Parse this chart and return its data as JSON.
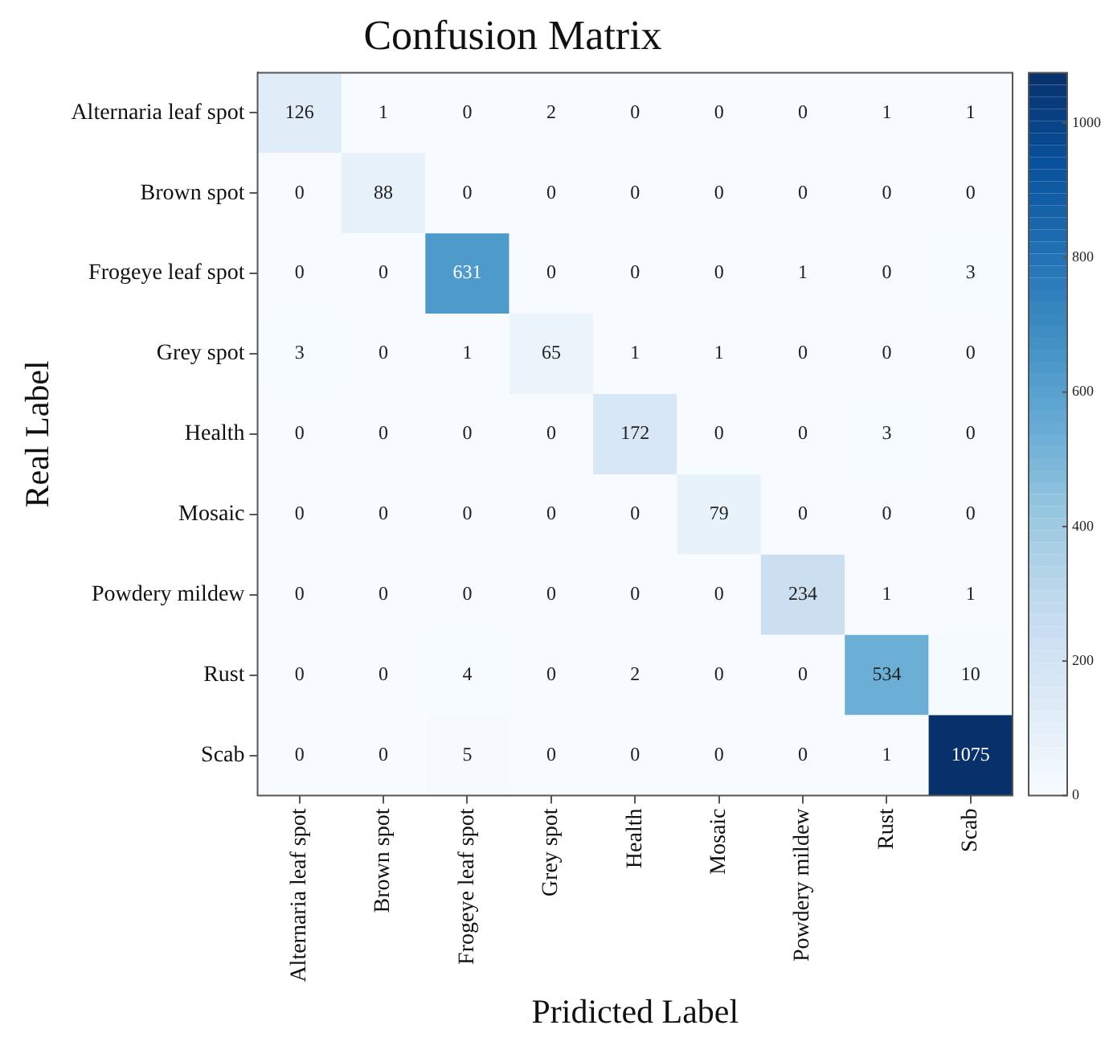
{
  "chart_data": {
    "type": "heatmap",
    "title": "Confusion Matrix",
    "xlabel": "Pridicted Label",
    "ylabel": "Real Label",
    "categories": [
      "Alternaria leaf spot",
      "Brown spot",
      "Frogeye leaf spot",
      "Grey spot",
      "Health",
      "Mosaic",
      "Powdery mildew",
      "Rust",
      "Scab"
    ],
    "y_categories": [
      "Alternaria leaf spot",
      "Brown spot",
      "Frogeye leaf spot",
      "Grey spot",
      "Health",
      "Mosaic",
      "Powdery mildew",
      "Rust",
      "Scab"
    ],
    "cells": [
      [
        126,
        1,
        0,
        2,
        0,
        0,
        0,
        1,
        1
      ],
      [
        0,
        88,
        0,
        0,
        0,
        0,
        0,
        0,
        0
      ],
      [
        0,
        0,
        631,
        0,
        0,
        0,
        1,
        0,
        3
      ],
      [
        3,
        0,
        1,
        65,
        1,
        1,
        0,
        0,
        0
      ],
      [
        0,
        0,
        0,
        0,
        172,
        0,
        0,
        3,
        0
      ],
      [
        0,
        0,
        0,
        0,
        0,
        79,
        0,
        0,
        0
      ],
      [
        0,
        0,
        0,
        0,
        0,
        0,
        234,
        1,
        1
      ],
      [
        0,
        0,
        4,
        0,
        2,
        0,
        0,
        534,
        10
      ],
      [
        0,
        0,
        5,
        0,
        0,
        0,
        0,
        1,
        1075
      ]
    ],
    "data_labels": true,
    "clim": [
      0,
      1075
    ],
    "cticks": [
      0,
      200,
      400,
      600,
      800,
      1000
    ]
  }
}
